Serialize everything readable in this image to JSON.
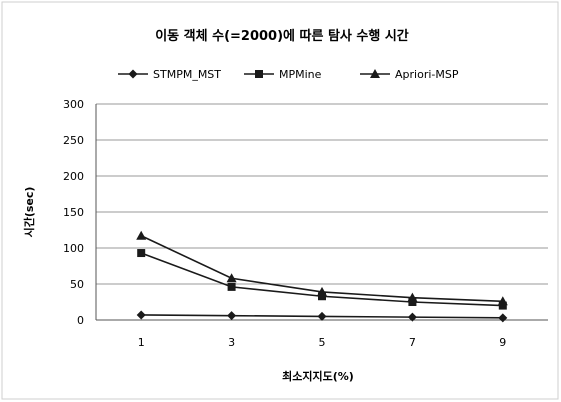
{
  "chart_data": {
    "type": "line",
    "title": "이동 객체 수(=2000)에 따른 탐사 수행 시간",
    "xlabel": "최소지지도(%)",
    "ylabel": "시간(sec)",
    "categories": [
      "1",
      "3",
      "5",
      "7",
      "9"
    ],
    "ylim": [
      0,
      300
    ],
    "yticks": [
      "0",
      "50",
      "100",
      "150",
      "200",
      "250",
      "300"
    ],
    "grid": true,
    "legend_position": "top",
    "series": [
      {
        "name": "STMPM_MST",
        "marker": "diamond",
        "values": [
          7,
          6,
          5,
          4,
          3
        ]
      },
      {
        "name": "MPMine",
        "marker": "square",
        "values": [
          93,
          46,
          33,
          25,
          20
        ]
      },
      {
        "name": "Apriori-MSP",
        "marker": "triangle",
        "values": [
          117,
          58,
          39,
          31,
          26
        ]
      }
    ],
    "colors": {
      "line": "#1a1a1a",
      "grid": "#9a9a9a",
      "axis": "#555555"
    }
  }
}
